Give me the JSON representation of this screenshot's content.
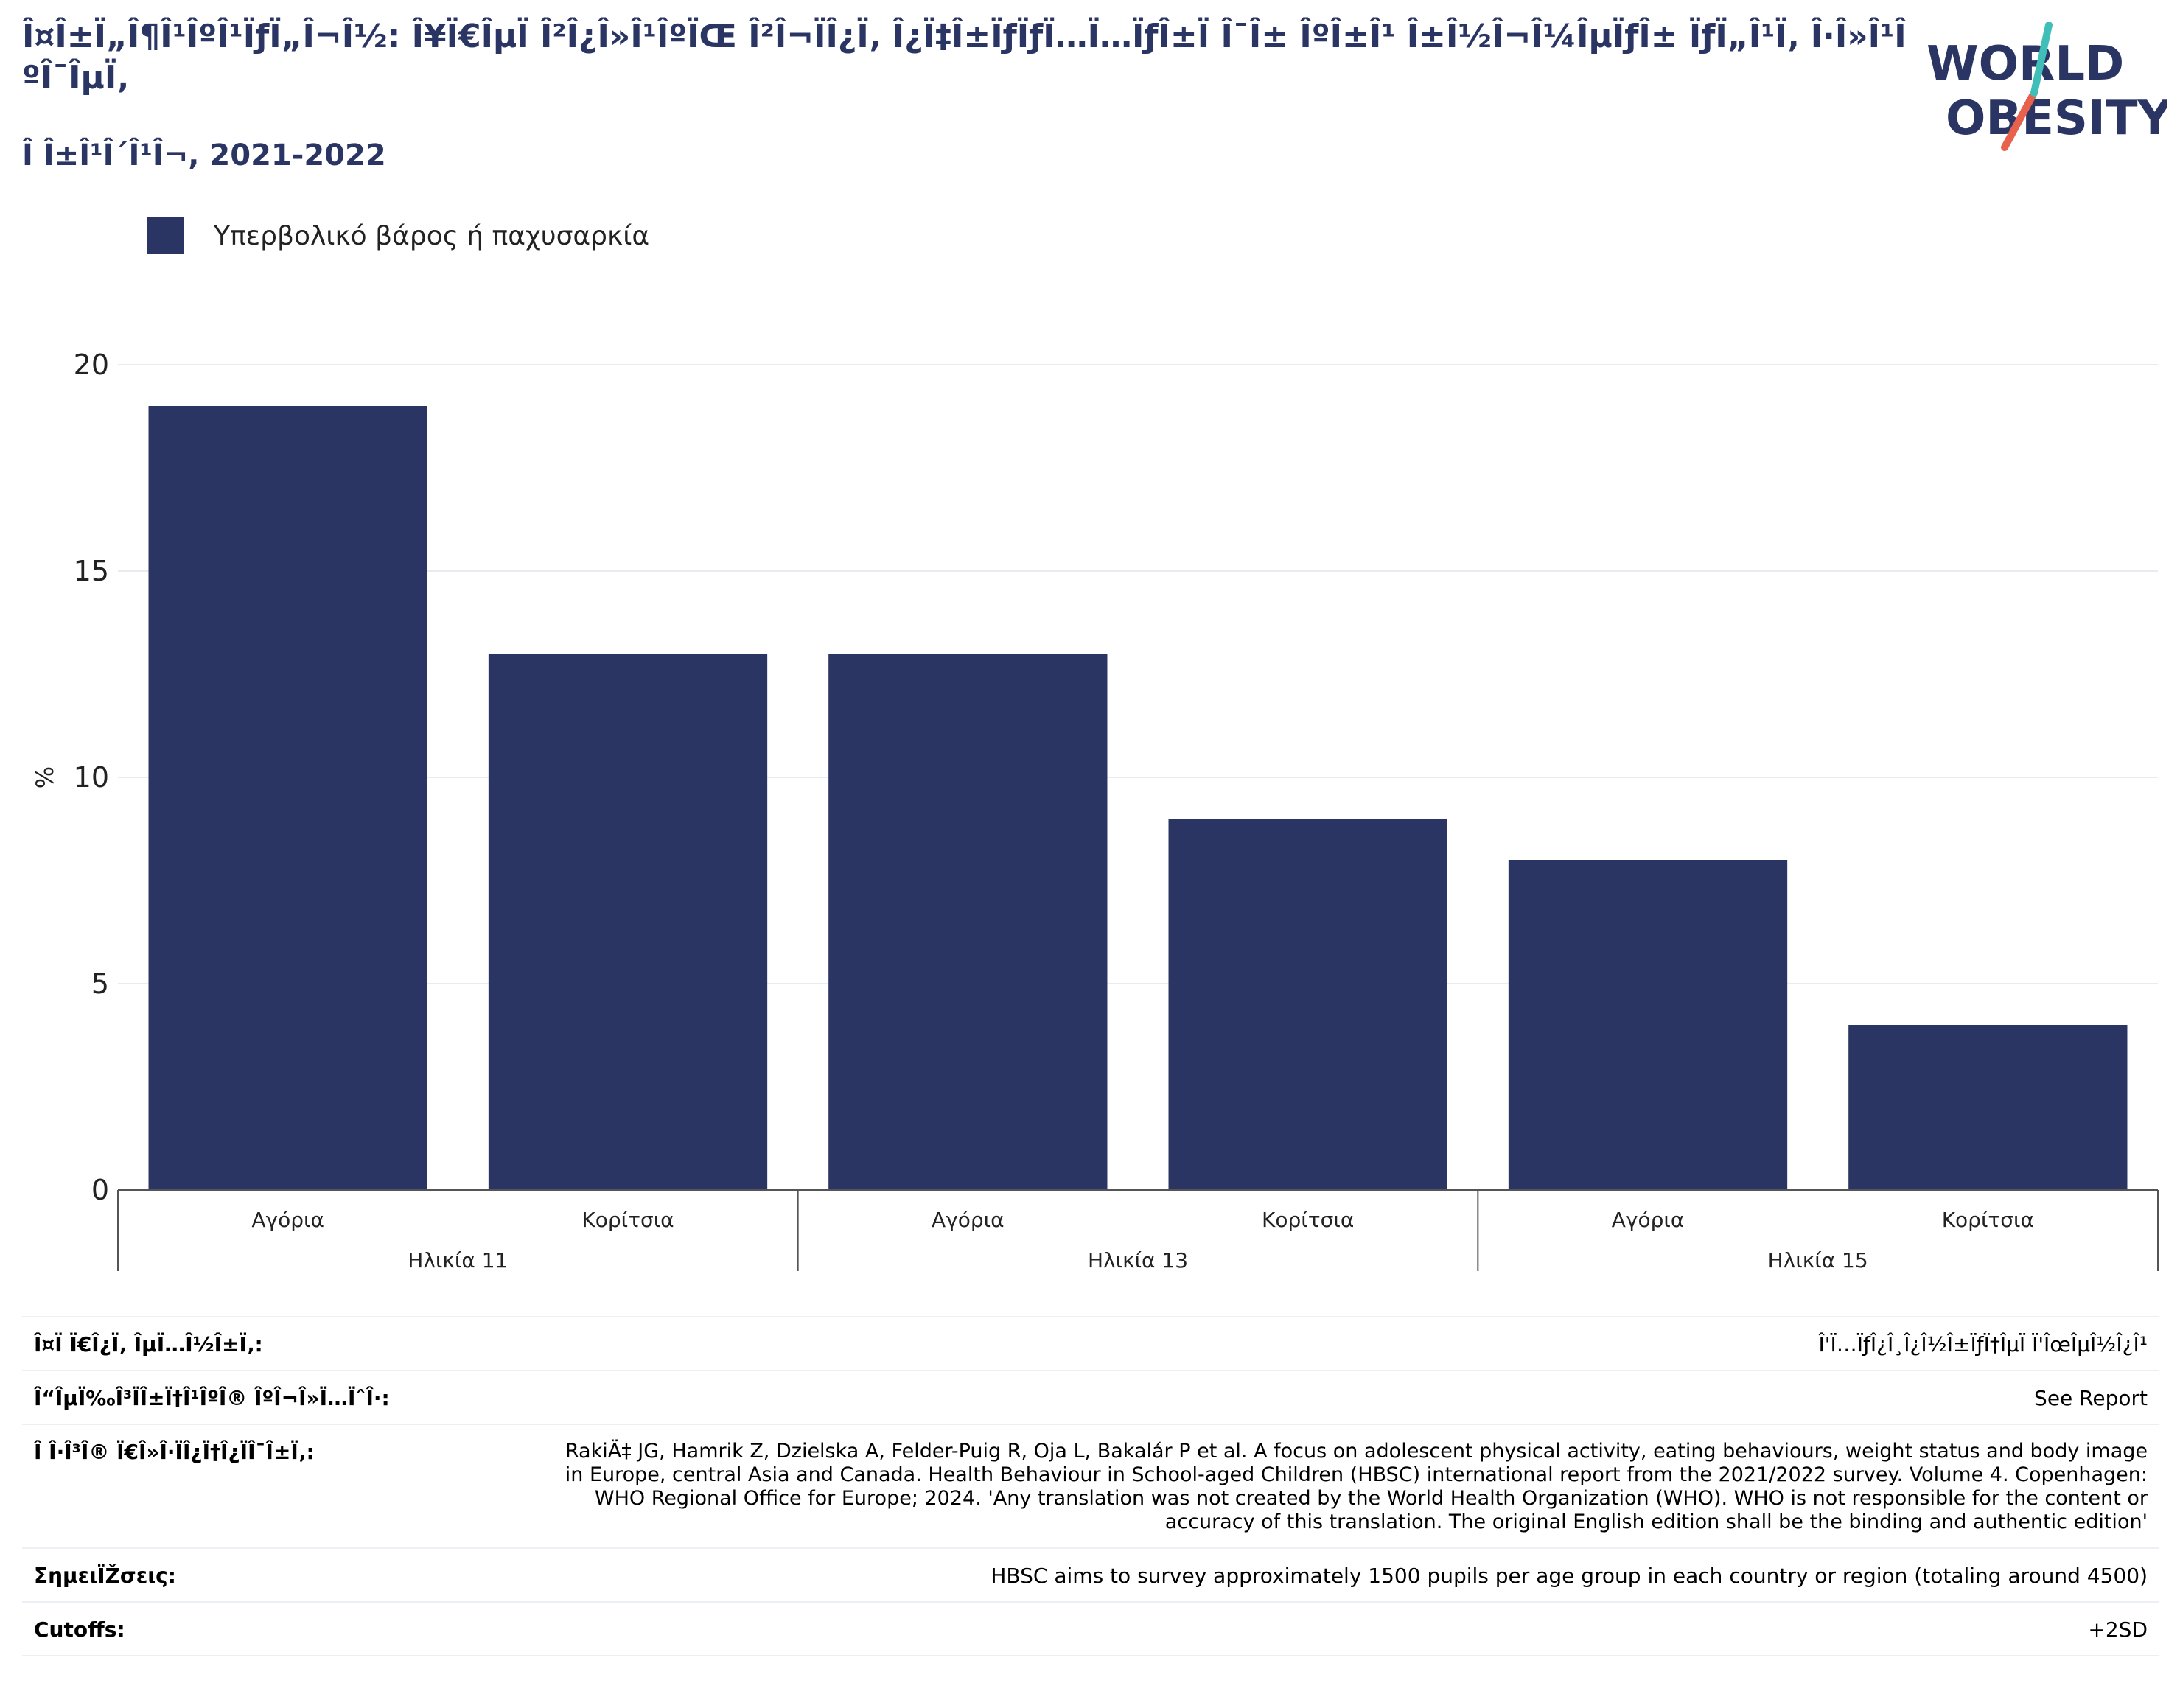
{
  "header": {
    "title": "Î¤Î±Ï„Î¶Î¹ÎºÎ¹ÏƒÏ„Î¬Î½: Î¥Ï€ÎµÏ Î²Î¿Î»Î¹ÎºÏŒ Î²Î¬ÏÎ¿Ï‚ Î¿Ï‡Î±ÏƒÏƒÏ…Ï…ÏƒÎ±Ï Î¯Î± ÎºÎ±Î¹ Î±Î½Î¬Î¼ÎµÏƒÎ± ÏƒÏ„Î¹Ï‚ Î·Î»Î¹ÎºÎ¯ÎµÏ‚",
    "subtitle": "Î Î±Î¹Î´Î¹Î¬, 2021-2022"
  },
  "logo": {
    "line1": "WORLD",
    "line2": "OBESITY"
  },
  "legend": {
    "label": "Υπερβολικό βάρος ή παχυσαρκία",
    "color": "#2a3563"
  },
  "chart_data": {
    "type": "bar",
    "categories": [
      "Αγόρια",
      "Κορίτσια",
      "Αγόρια",
      "Κορίτσια",
      "Αγόρια",
      "Κορίτσια"
    ],
    "groups": [
      {
        "label": "Ηλικία 11",
        "span": 2
      },
      {
        "label": "Ηλικία 13",
        "span": 2
      },
      {
        "label": "Ηλικία 15",
        "span": 2
      }
    ],
    "series": [
      {
        "name": "Υπερβολικό βάρος ή παχυσαρκία",
        "values": [
          19,
          13,
          13,
          9,
          8,
          4
        ]
      }
    ],
    "ylabel": "%",
    "ylim": [
      0,
      20
    ],
    "yticks": [
      0,
      5,
      10,
      15,
      20
    ],
    "grid": true,
    "legend_position": "top-left",
    "bar_color": "#2a3563"
  },
  "info": [
    {
      "label": "Î¤Ï Ï€Î¿Ï‚ ÎµÏ…Î½Î±Ï‚:",
      "value": "Î'Ï…ÏƒÎ¿Î¸Î¿Î½Î±ÏƒÏ†ÎµÏ Ï'ÎœÎµÎ½Î¿Î¹"
    },
    {
      "label": "Î“ÎµÏ‰Î³ÏÎ±Ï†Î¹ÎºÎ® ÎºÎ¬Î»Ï…ÏˆÎ·:",
      "value": "See Report"
    },
    {
      "label": "Î Î·Î³Î® Ï€Î»Î·ÏÎ¿Ï†Î¿ÏÎ¯Î±Ï‚:",
      "value": "RakiÄ‡ JG, Hamrik Z, Dzielska A, Felder-Puig R, Oja L, Bakalár P et al. A focus on adolescent physical activity, eating behaviours, weight status and body image in Europe, central Asia and Canada. Health Behaviour in School-aged Children (HBSC) international report from the 2021/2022 survey. Volume 4. Copenhagen: WHO Regional Office for Europe; 2024. 'Any translation was not created by the World Health Organization (WHO). WHO is not responsible for the content or accuracy of this translation. The original English edition shall be the binding and authentic edition'"
    },
    {
      "label": "ΣημειÏŽσεις:",
      "value": "HBSC aims to survey approximately 1500 pupils per age group in each country or region (totaling around 4500)"
    },
    {
      "label": "Cutoffs:",
      "value": "+2SD"
    }
  ]
}
